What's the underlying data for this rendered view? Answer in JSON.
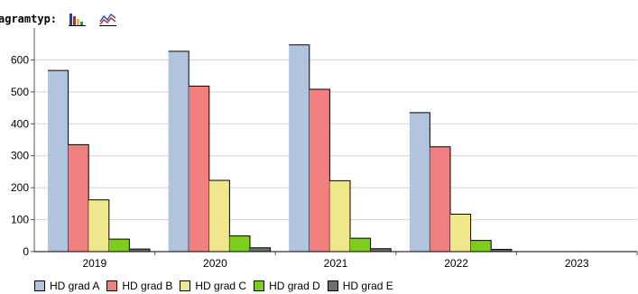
{
  "header": {
    "diagram_label": "agramtyp:",
    "bar_icon": "bar-chart-icon",
    "line_icon": "line-chart-icon"
  },
  "colors": {
    "HD grad A": "#b0c4de",
    "HD grad B": "#f08080",
    "HD grad C": "#f0e68c",
    "HD grad D": "#7ccd1e",
    "HD grad E": "#6e6e6e",
    "grid": "#d3d3d3",
    "axis": "#555555"
  },
  "chart_data": {
    "type": "bar",
    "categories": [
      "2019",
      "2020",
      "2021",
      "2022",
      "2023"
    ],
    "series": [
      {
        "name": "HD grad A",
        "values": [
          567,
          627,
          647,
          435,
          0
        ]
      },
      {
        "name": "HD grad B",
        "values": [
          335,
          518,
          508,
          328,
          0
        ]
      },
      {
        "name": "HD grad C",
        "values": [
          162,
          223,
          222,
          117,
          0
        ]
      },
      {
        "name": "HD grad D",
        "values": [
          39,
          49,
          42,
          35,
          0
        ]
      },
      {
        "name": "HD grad E",
        "values": [
          8,
          12,
          9,
          7,
          0
        ]
      }
    ],
    "yticks": [
      0,
      100,
      200,
      300,
      400,
      500,
      600
    ],
    "ylim": [
      0,
      700
    ],
    "grid": true,
    "legend_position": "bottom-left"
  }
}
